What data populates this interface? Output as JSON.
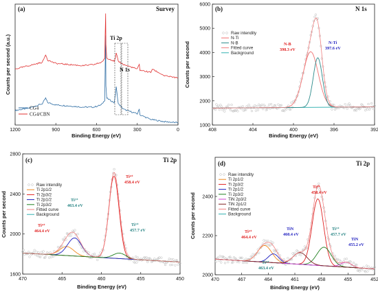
{
  "chart_data": [
    {
      "type": "line",
      "panel": "(a)",
      "title": "Survey",
      "xlabel": "Binding Energy (eV)",
      "ylabel": "Counts per second (a.u.)",
      "xlim": [
        1200,
        0
      ],
      "xticks": [
        "1200",
        "900",
        "600",
        "300",
        "0"
      ],
      "series": [
        {
          "name": "CG4",
          "color": "#2e6da4",
          "x": [
            1200,
            1100,
            1000,
            985,
            975,
            960,
            900,
            800,
            700,
            620,
            565,
            540,
            533,
            531,
            525,
            470,
            460,
            455,
            440,
            400,
            300,
            285,
            280,
            200,
            100,
            0
          ],
          "y": [
            0.13,
            0.15,
            0.19,
            0.22,
            0.24,
            0.2,
            0.18,
            0.17,
            0.16,
            0.16,
            0.18,
            0.22,
            0.8,
            0.35,
            0.24,
            0.2,
            0.28,
            0.34,
            0.19,
            0.14,
            0.1,
            0.14,
            0.09,
            0.05,
            0.03,
            0.02
          ]
        },
        {
          "name": "CG4/CBN",
          "color": "#e03030",
          "x": [
            1200,
            1100,
            1000,
            985,
            975,
            960,
            900,
            800,
            700,
            620,
            565,
            540,
            533,
            531,
            525,
            470,
            460,
            455,
            440,
            400,
            300,
            285,
            280,
            200,
            190,
            100,
            0
          ],
          "y": [
            0.5,
            0.53,
            0.56,
            0.6,
            0.63,
            0.58,
            0.55,
            0.54,
            0.53,
            0.54,
            0.56,
            0.59,
            1.0,
            0.72,
            0.6,
            0.57,
            0.6,
            0.64,
            0.57,
            0.54,
            0.5,
            0.54,
            0.49,
            0.47,
            0.5,
            0.44,
            0.42
          ]
        }
      ],
      "annotations": [
        "Ti 2p",
        "N 1s"
      ]
    },
    {
      "type": "line",
      "panel": "(b)",
      "title": "N 1s",
      "xlabel": "Binding Energy (eV)",
      "ylabel": "Counts per second",
      "xlim": [
        408,
        392
      ],
      "ylim": [
        1000,
        6000
      ],
      "xticks": [
        408,
        404,
        400,
        396,
        392
      ],
      "yticks": [
        1000,
        2000,
        3000,
        4000,
        5000,
        6000
      ],
      "legend": [
        "Raw intendity",
        "N-Ti",
        "N-B",
        "Fitted curve",
        "Background"
      ],
      "peaks": [
        {
          "name": "N-B",
          "center": 398.3,
          "height": 2300,
          "sigma": 0.75,
          "color": "#f07070"
        },
        {
          "name": "N-Ti",
          "center": 397.6,
          "height": 2050,
          "sigma": 0.45,
          "color": "#2a8a8a"
        }
      ],
      "background": [
        1700,
        1750
      ],
      "annotations": [
        {
          "text": "N-B",
          "sub": "398.3 eV",
          "color": "#e02020"
        },
        {
          "text": "N-Ti",
          "sub": "397.6 eV",
          "color": "#2020c0"
        }
      ]
    },
    {
      "type": "line",
      "panel": "(c)",
      "title": "Ti 2p",
      "xlabel": "Binding Energy (eV)",
      "ylabel": "Counts per second",
      "xlim": [
        470,
        450
      ],
      "ylim": [
        1600,
        2800
      ],
      "xticks": [
        470,
        465,
        460,
        455,
        450
      ],
      "yticks": [
        1600,
        2000,
        2400,
        2800
      ],
      "legend": [
        "Raw intendity",
        "Ti 2p1/2",
        "Ti 2p3/2",
        "Ti 2p1/2",
        "Ti 2p3/2",
        "Fitted curve",
        "Background"
      ],
      "peaks": [
        {
          "name": "Ti 2p1/2",
          "center": 464.4,
          "height": 90,
          "sigma": 0.9,
          "color": "#f08a20"
        },
        {
          "name": "Ti 2p3/2",
          "center": 458.4,
          "height": 820,
          "sigma": 0.65,
          "color": "#e02020"
        },
        {
          "name": "Ti 2p1/2",
          "center": 463.4,
          "height": 180,
          "sigma": 0.9,
          "color": "#2020c0"
        },
        {
          "name": "Ti 2p3/2",
          "center": 457.7,
          "height": 55,
          "sigma": 0.8,
          "color": "#208020"
        }
      ],
      "background": [
        1810,
        1720
      ],
      "annotations": [
        {
          "text": "Ti⁴⁺",
          "sub": "464.4 eV",
          "color": "#e02020"
        },
        {
          "text": "Ti³⁺",
          "sub": "463.4 eV",
          "color": "#208080"
        },
        {
          "text": "Ti⁴⁺",
          "sub": "458.4 eV",
          "color": "#e02020"
        },
        {
          "text": "Ti³⁺",
          "sub": "457.7 eV",
          "color": "#208080"
        }
      ]
    },
    {
      "type": "line",
      "panel": "(d)",
      "title": "Ti 2p",
      "xlabel": "Binding Energy (eV)",
      "ylabel": "Counts per second",
      "xlim": [
        470,
        452
      ],
      "ylim": [
        2000,
        2600
      ],
      "xticks": [
        470,
        467,
        464,
        461,
        458,
        455,
        452
      ],
      "yticks": [
        2000,
        2200,
        2400
      ],
      "legend": [
        "Raw intendity",
        "Ti 2p1/2",
        "Ti 2p3/2",
        "Ti 2p1/2",
        "Ti 2p3/2",
        "TiN 2p3/2",
        "TiN 2p1/2",
        "Fitted curve",
        "Background"
      ],
      "peaks": [
        {
          "name": "Ti 2p1/2",
          "center": 464.4,
          "height": 85,
          "sigma": 0.8,
          "color": "#f08a20"
        },
        {
          "name": "Ti 2p3/2",
          "center": 458.4,
          "height": 340,
          "sigma": 0.65,
          "color": "#e02020"
        },
        {
          "name": "Ti 2p1/2",
          "center": 463.4,
          "height": 45,
          "sigma": 0.6,
          "color": "#2020c0"
        },
        {
          "name": "Ti 2p3/2",
          "center": 457.7,
          "height": 95,
          "sigma": 0.8,
          "color": "#208020"
        },
        {
          "name": "TiN 2p3/2",
          "center": 455.2,
          "height": 25,
          "sigma": 0.6,
          "color": "#d040d0"
        },
        {
          "name": "TiN 2p1/2",
          "center": 460.4,
          "height": 60,
          "sigma": 0.8,
          "color": "#802020"
        }
      ],
      "background": [
        2080,
        2030
      ],
      "annotations": [
        {
          "text": "Ti⁴⁺",
          "sub": "464.4 eV",
          "color": "#e02020"
        },
        {
          "text": "Ti³⁺",
          "sub": "463.4 eV",
          "color": "#208080"
        },
        {
          "text": "TiN",
          "sub": "460.4 eV",
          "color": "#2020c0"
        },
        {
          "text": "Ti⁴⁺",
          "sub": "458.4 eV",
          "color": "#e02020"
        },
        {
          "text": "Ti³⁺",
          "sub": "457.7 eV",
          "color": "#208080"
        },
        {
          "text": "TiN",
          "sub": "455.2 eV",
          "color": "#2020c0"
        }
      ]
    }
  ],
  "colors": {
    "raw": "#b8b8b8",
    "fitted": "#f08080",
    "background": "#30b0b0",
    "frame": "#222222"
  }
}
